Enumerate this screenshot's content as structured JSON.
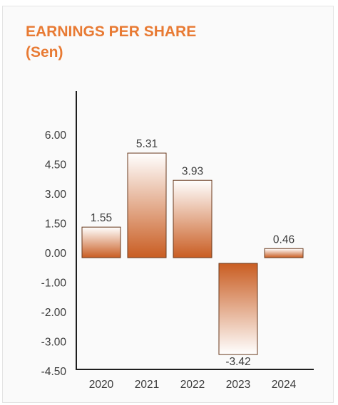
{
  "colors": {
    "title": "#e87a33",
    "bar_dark": "#c95d22",
    "bar_light": "#ffffff",
    "axis": "#1e1e1e",
    "text": "#3a3a3a"
  },
  "chart_data": {
    "type": "bar",
    "title": "EARNINGS PER SHARE",
    "subtitle": "(Sen)",
    "xlabel": "",
    "ylabel": "",
    "categories": [
      "2020",
      "2021",
      "2022",
      "2023",
      "2024"
    ],
    "values": [
      1.55,
      5.31,
      3.93,
      -3.42,
      0.46
    ],
    "value_labels": [
      "1.55",
      "5.31",
      "3.93",
      "-3.42",
      "0.46"
    ],
    "y_tick_labels": [
      "6.00",
      "4.50",
      "3.00",
      "1.50",
      "0.00",
      "-1.00",
      "-2.00",
      "-3.00",
      "-4.50"
    ],
    "ylim": [
      -4.5,
      6.0
    ],
    "grid": false,
    "legend": "none"
  }
}
